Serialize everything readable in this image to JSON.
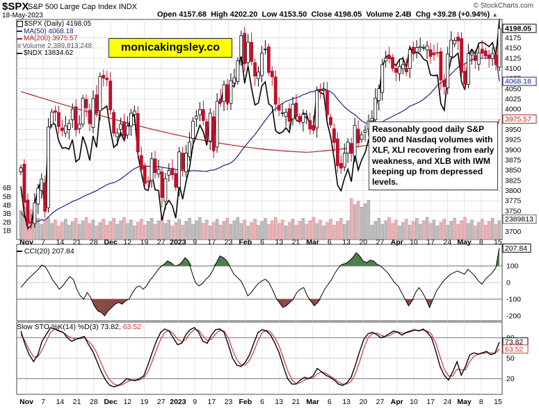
{
  "header": {
    "symbol": "$SPX",
    "name": "S&P 500 Large Cap Index",
    "exchange": "INDX",
    "date": "18-May-2023",
    "open_label": "Open",
    "open": "4157.68",
    "high_label": "High",
    "high": "4202.20",
    "low_label": "Low",
    "low": "4153.50",
    "close_label": "Close",
    "close": "4198.05",
    "volume_label": "Volume",
    "volume": "2.4B",
    "chg_label": "Chg",
    "chg": "+39.28 (+0.94%)",
    "chg_arrow": "▲",
    "brand": "© StockCharts.com"
  },
  "watermark": "monicakingsley.co",
  "legend": {
    "main": "$SPX (Daily) 4198.05",
    "ma50": "MA(50) 4068.18",
    "ma200": "MA(200) 3975.57",
    "volume": "Volume 2,389,813,248",
    "ndx": "$NDX 13834.62"
  },
  "note": "Reasonably good daily S&P 500 and Nasdaq volumes with XLF, XLI recovering from early weakness, and XLB with IWM keeping up from depressed levels.",
  "colors": {
    "up": "#ffffff",
    "down": "#c0102a",
    "ma50": "#1a237e",
    "ma200": "#b22222",
    "ndx": "#000000",
    "vol_up": "#bdbdbd",
    "vol_down": "#e8b2b8",
    "cci_pos": "#4f7f4f",
    "cci_neg": "#8a4a44",
    "sto_k": "#000000",
    "sto_d": "#cc3333"
  },
  "chart_data": [
    {
      "type": "candlestick",
      "title": "$SPX S&P 500 Large Cap Index (Daily)",
      "x_labels": [
        "Nov",
        "7",
        "14",
        "21",
        "28",
        "Dec",
        "12",
        "19",
        "27",
        "2023",
        "9",
        "17",
        "23",
        "Feb",
        "6",
        "13",
        "21",
        "Mar",
        "6",
        "13",
        "20",
        "27",
        "Apr",
        "10",
        "17",
        "24",
        "May",
        "8",
        "15"
      ],
      "ylim": [
        3680,
        4220
      ],
      "yticks": [
        3700,
        3725,
        3750,
        3775,
        3800,
        3825,
        3850,
        3875,
        3900,
        3925,
        3950,
        3975,
        4000,
        4025,
        4050,
        4075,
        4100,
        4125,
        4150,
        4175
      ],
      "close": [
        3856,
        3771,
        3720,
        3719,
        3770,
        3806,
        3828,
        3749,
        3956,
        3993,
        3992,
        3957,
        3947,
        3959,
        3965,
        4000,
        3949,
        3963,
        4027,
        4003,
        3964,
        4026,
        3990,
        4080,
        4076,
        4072,
        3998,
        3941,
        3941,
        3963,
        3934,
        3958,
        3990,
        3995,
        3895,
        3852,
        3817,
        3822,
        3878,
        3844,
        3852,
        3783,
        3829,
        3849,
        3839,
        3808,
        3895,
        3852,
        3892,
        3919,
        3970,
        3983,
        3999,
        3972,
        3928,
        3990,
        3898,
        4019,
        4016,
        4060,
        4017,
        4070,
        4077,
        4119,
        4180,
        4111,
        4164,
        4117,
        4081,
        4091,
        4137,
        4147,
        4090,
        4079,
        4012,
        3997,
        3991,
        3992,
        3970,
        4012,
        3982,
        3970,
        3987,
        3981,
        3951,
        3948,
        4046,
        4045,
        4048,
        3986,
        3961,
        3918,
        3861,
        3855,
        3892,
        3919,
        3891,
        3960,
        3917,
        3937,
        3948,
        3971,
        3977,
        4027,
        4050,
        4109,
        4125,
        4124,
        4100,
        4090,
        4105,
        4109,
        4091,
        4146,
        4137,
        4151,
        4154,
        4151,
        4155,
        4129,
        4133,
        4138,
        4071,
        4055,
        4135,
        4169,
        4168,
        4167,
        4090,
        4061,
        4136,
        4138,
        4119,
        4138,
        4137,
        4130,
        4124,
        4136,
        4109,
        4198
      ],
      "series": [
        {
          "name": "MA(50)",
          "last": 4068.18
        },
        {
          "name": "MA(200)",
          "last": 3975.57
        },
        {
          "name": "$NDX",
          "last": 13834.62
        }
      ],
      "volume": {
        "last": "2,389,813,248",
        "tick_labels": [
          "6B",
          "5B",
          "4B",
          "3B",
          "2B",
          "1B"
        ],
        "last_label": "2389813"
      },
      "right_labels": [
        "4198.05",
        "4068.18",
        "3975.57"
      ]
    },
    {
      "type": "line",
      "title": "CCI(20)",
      "value": "207.84",
      "ylim": [
        -230,
        230
      ],
      "yticks": [
        -200,
        -100,
        0,
        100
      ],
      "levels": [
        100,
        -100
      ],
      "values": [
        -30,
        -5,
        20,
        40,
        60,
        80,
        105,
        95,
        60,
        20,
        -10,
        -40,
        -20,
        10,
        35,
        20,
        -40,
        -80,
        -100,
        -60,
        -90,
        -140,
        -170,
        -180,
        -200,
        -170,
        -150,
        -130,
        -120,
        -130,
        -110,
        -100,
        -60,
        -30,
        -20,
        -40,
        -20,
        15,
        40,
        70,
        95,
        110,
        130,
        120,
        100,
        105,
        120,
        150,
        130,
        60,
        0,
        -20,
        -5,
        20,
        40,
        75,
        120,
        160,
        150,
        130,
        90,
        50,
        30,
        10,
        -30,
        -80,
        -60,
        -30,
        -5,
        10,
        20,
        0,
        -40,
        -90,
        -120,
        -150,
        -140,
        -120,
        -100,
        -60,
        -40,
        -30,
        -80,
        -110,
        -140,
        -120,
        -80,
        -40,
        -10,
        20,
        60,
        90,
        110,
        115,
        130,
        150,
        180,
        160,
        130,
        120,
        135,
        130,
        110,
        100,
        80,
        60,
        30,
        0,
        -20,
        -60,
        -100,
        -140,
        -110,
        -60,
        -30,
        -60,
        -100,
        -150,
        -100,
        -50,
        -20,
        10,
        30,
        50,
        60,
        70,
        60,
        50,
        80,
        60,
        40,
        10,
        -10,
        20,
        40,
        60,
        90,
        207.84
      ]
    },
    {
      "type": "line",
      "title": "Slow STO %K(14) %D(3)",
      "k_value": "73.82",
      "d_value": "63.52",
      "ylim": [
        0,
        100
      ],
      "yticks": [
        20,
        50,
        80
      ],
      "series": [
        {
          "name": "%K",
          "values": [
            90,
            70,
            55,
            45,
            55,
            75,
            85,
            95,
            93,
            90,
            88,
            80,
            75,
            78,
            80,
            82,
            70,
            60,
            45,
            30,
            18,
            10,
            8,
            10,
            14,
            20,
            18,
            17,
            20,
            24,
            40,
            58,
            75,
            88,
            93,
            90,
            80,
            70,
            72,
            85,
            92,
            95,
            88,
            75,
            72,
            84,
            92,
            93,
            88,
            70,
            50,
            40,
            38,
            44,
            55,
            72,
            88,
            92,
            90,
            84,
            72,
            58,
            38,
            20,
            12,
            12,
            18,
            22,
            20,
            24,
            35,
            30,
            25,
            22,
            18,
            12,
            10,
            14,
            22,
            40,
            60,
            78,
            86,
            88,
            85,
            80,
            82,
            86,
            90,
            88,
            84,
            88,
            90,
            92,
            90,
            93,
            88,
            80,
            60,
            38,
            25,
            18,
            30,
            45,
            25,
            38,
            55,
            58,
            56,
            58,
            60,
            55,
            58,
            73.82
          ]
        },
        {
          "name": "%D",
          "values": [
            85,
            75,
            62,
            52,
            52,
            62,
            75,
            88,
            93,
            91,
            88,
            83,
            80,
            78,
            79,
            80,
            75,
            68,
            57,
            42,
            28,
            18,
            12,
            10,
            11,
            15,
            18,
            18,
            18,
            21,
            30,
            45,
            62,
            78,
            88,
            91,
            86,
            78,
            74,
            78,
            87,
            92,
            91,
            83,
            76,
            78,
            86,
            91,
            90,
            80,
            62,
            48,
            40,
            40,
            47,
            60,
            76,
            88,
            91,
            88,
            80,
            68,
            50,
            32,
            18,
            13,
            14,
            18,
            20,
            21,
            27,
            30,
            28,
            24,
            20,
            15,
            12,
            12,
            16,
            27,
            45,
            65,
            80,
            86,
            87,
            84,
            82,
            83,
            87,
            89,
            87,
            87,
            89,
            91,
            91,
            91,
            90,
            85,
            72,
            52,
            34,
            24,
            24,
            34,
            33,
            33,
            45,
            53,
            56,
            57,
            58,
            58,
            57,
            63.52
          ]
        }
      ]
    }
  ]
}
